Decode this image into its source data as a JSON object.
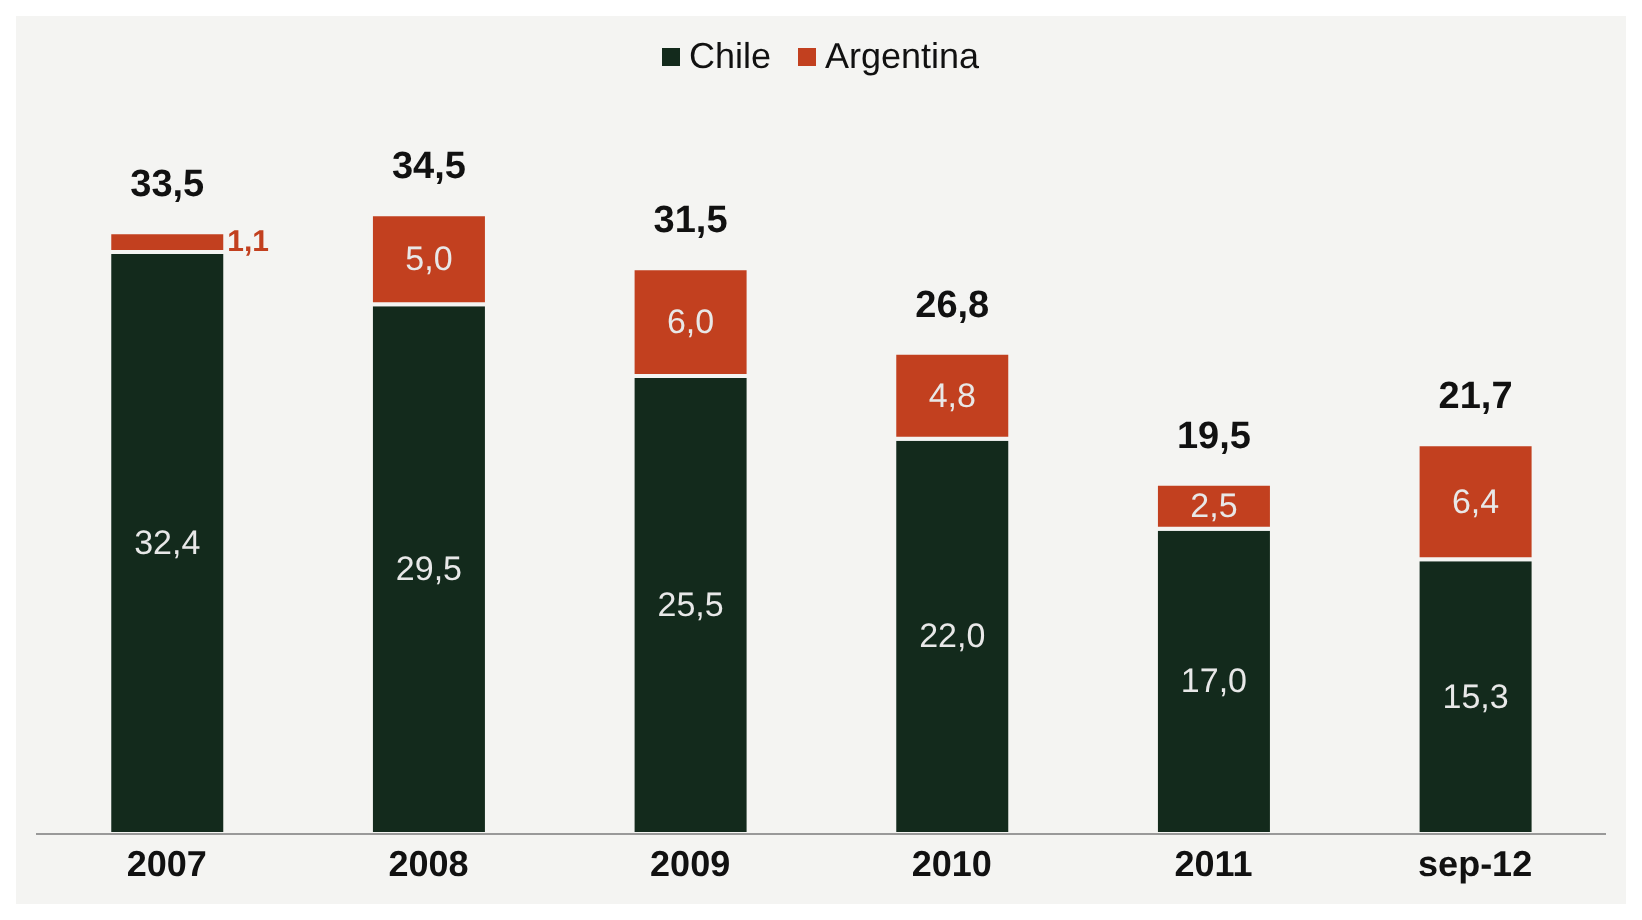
{
  "chart_data": {
    "type": "bar",
    "stacked": true,
    "categories": [
      "2007",
      "2008",
      "2009",
      "2010",
      "2011",
      "sep-12"
    ],
    "series": [
      {
        "name": "Chile",
        "color": "#132a1c",
        "values": [
          32.4,
          29.5,
          25.5,
          22.0,
          17.0,
          15.3
        ],
        "value_labels": [
          "32,4",
          "29,5",
          "25,5",
          "22,0",
          "17,0",
          "15,3"
        ]
      },
      {
        "name": "Argentina",
        "color": "#c2401f",
        "values": [
          1.1,
          5.0,
          6.0,
          4.8,
          2.5,
          6.4
        ],
        "value_labels": [
          "1,1",
          "5,0",
          "6,0",
          "4,8",
          "2,5",
          "6,4"
        ]
      }
    ],
    "totals": [
      "33,5",
      "34,5",
      "31,5",
      "26,8",
      "19,5",
      "21,7"
    ],
    "legend": "top",
    "grid": false
  }
}
